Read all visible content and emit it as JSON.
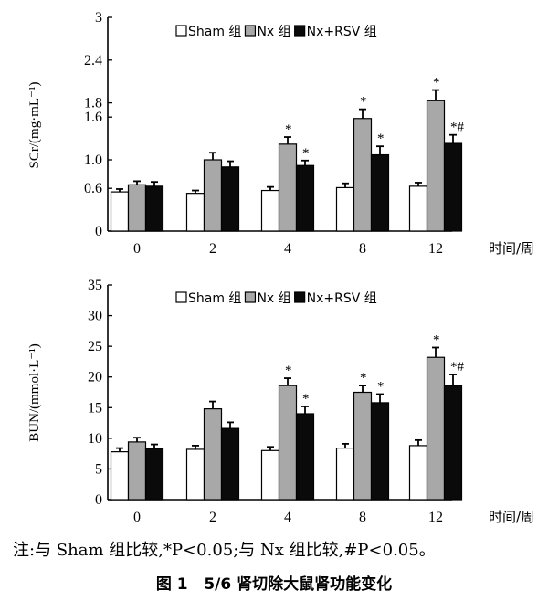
{
  "chart_data": [
    {
      "type": "bar",
      "categories": [
        "0",
        "2",
        "4",
        "8",
        "12"
      ],
      "xlabel": "时间/周",
      "ylabel": "SCr/(mg·mL⁻¹)",
      "ylim": [
        0,
        3
      ],
      "yticks": [
        {
          "value": 0,
          "label": "0"
        },
        {
          "value": 0.6,
          "label": "0.6"
        },
        {
          "value": 1.0,
          "label": "1.0"
        },
        {
          "value": 1.6,
          "label": "1.6"
        },
        {
          "value": 1.8,
          "label": "1.8"
        },
        {
          "value": 2.4,
          "label": "2.4"
        },
        {
          "value": 3,
          "label": "3"
        }
      ],
      "legend_position": "top-center",
      "series": [
        {
          "name": "Sham 组",
          "values": [
            0.55,
            0.53,
            0.57,
            0.61,
            0.63
          ],
          "errors": [
            0.04,
            0.04,
            0.05,
            0.06,
            0.05
          ],
          "marks": [
            "",
            "",
            "",
            "",
            ""
          ]
        },
        {
          "name": "Nx 组",
          "values": [
            0.65,
            1.0,
            1.22,
            1.58,
            1.83
          ],
          "errors": [
            0.05,
            0.1,
            0.1,
            0.13,
            0.15
          ],
          "marks": [
            "",
            "",
            "*",
            "*",
            "*"
          ]
        },
        {
          "name": "Nx+RSV 组",
          "values": [
            0.63,
            0.9,
            0.92,
            1.07,
            1.23
          ],
          "errors": [
            0.06,
            0.08,
            0.07,
            0.12,
            0.12
          ],
          "marks": [
            "",
            "",
            "*",
            "*",
            "*#"
          ]
        }
      ]
    },
    {
      "type": "bar",
      "categories": [
        "0",
        "2",
        "4",
        "8",
        "12"
      ],
      "xlabel": "时间/周",
      "ylabel": "BUN/(mmol·L⁻¹)",
      "ylim": [
        0,
        35
      ],
      "yticks": [
        {
          "value": 0,
          "label": "0"
        },
        {
          "value": 5,
          "label": "5"
        },
        {
          "value": 10,
          "label": "10"
        },
        {
          "value": 15,
          "label": "15"
        },
        {
          "value": 20,
          "label": "20"
        },
        {
          "value": 25,
          "label": "25"
        },
        {
          "value": 30,
          "label": "30"
        },
        {
          "value": 35,
          "label": "35"
        }
      ],
      "legend_position": "top-center",
      "series": [
        {
          "name": "Sham 组",
          "values": [
            7.8,
            8.2,
            8.0,
            8.4,
            8.8
          ],
          "errors": [
            0.6,
            0.6,
            0.6,
            0.7,
            0.9
          ],
          "marks": [
            "",
            "",
            "",
            "",
            ""
          ]
        },
        {
          "name": "Nx 组",
          "values": [
            9.4,
            14.8,
            18.6,
            17.5,
            23.2
          ],
          "errors": [
            0.7,
            1.2,
            1.2,
            1.1,
            1.6
          ],
          "marks": [
            "",
            "",
            "*",
            "*",
            "*"
          ]
        },
        {
          "name": "Nx+RSV 组",
          "values": [
            8.3,
            11.6,
            14.0,
            15.8,
            18.6
          ],
          "errors": [
            0.7,
            1.0,
            1.2,
            1.4,
            1.8
          ],
          "marks": [
            "",
            "",
            "*",
            "*",
            "*#"
          ]
        }
      ]
    }
  ],
  "colors": {
    "sham": "#ffffff",
    "nx": "#a8a8a8",
    "rsv": "#0a0a0a"
  },
  "footnote": "注:与 Sham 组比较,*P<0.05;与 Nx 组比较,#P<0.05。",
  "caption": "图 1   5/6 肾切除大鼠肾功能变化"
}
